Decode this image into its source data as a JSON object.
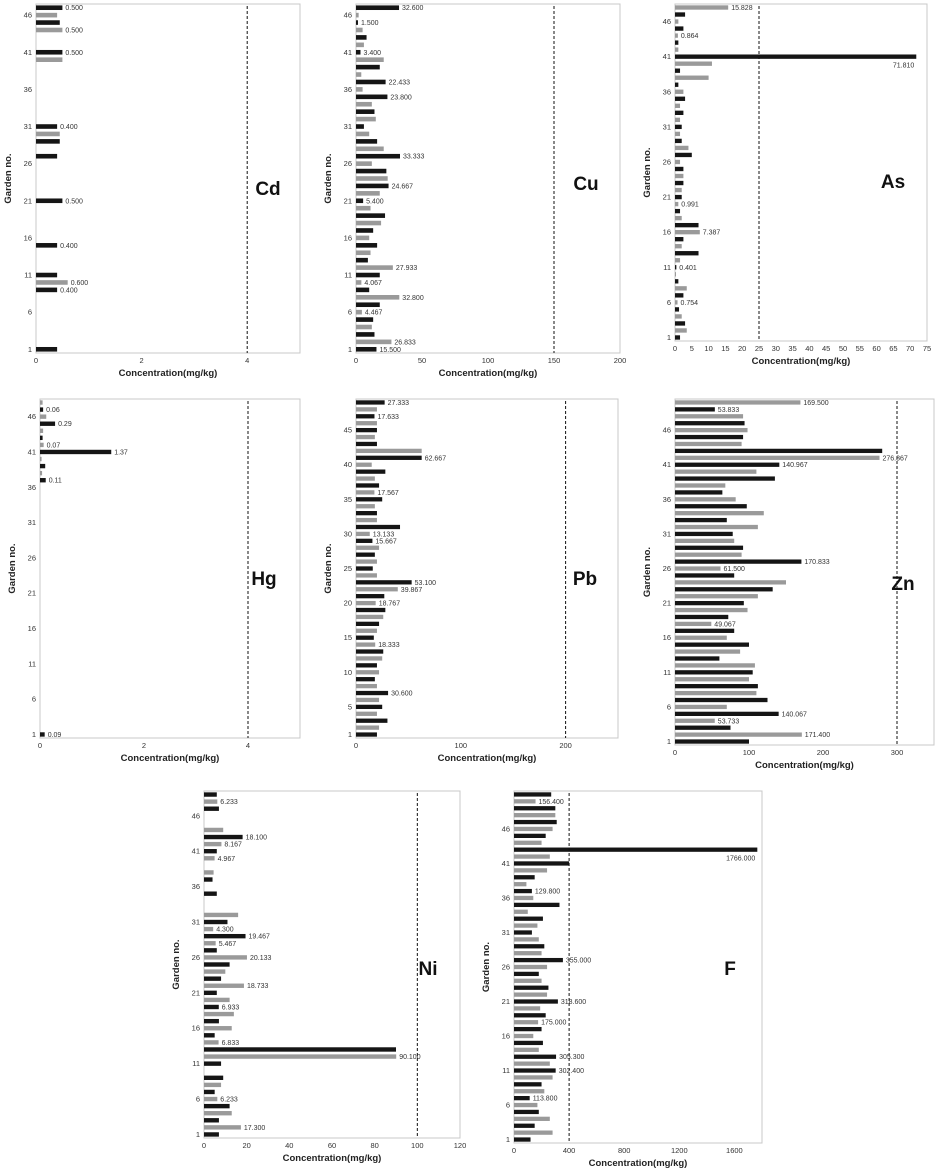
{
  "chart_data": [
    {
      "type": "bar",
      "orientation": "horizontal",
      "element": "Cd",
      "xlabel": "Concentration(mg/kg)",
      "ylabel": "Garden no.",
      "xlim": [
        0,
        5
      ],
      "xticks": [
        0,
        2,
        4
      ],
      "threshold": 4,
      "yticks": [
        "1",
        "6",
        "11",
        "16",
        "21",
        "26",
        "31",
        "36",
        "41",
        "46"
      ],
      "values": [
        0.4,
        0,
        0,
        0,
        0,
        0,
        0,
        0,
        0.4,
        0.6,
        0.4,
        0,
        0,
        0,
        0.4,
        0,
        0,
        0,
        0,
        0,
        0.5,
        0,
        0,
        0,
        0,
        0,
        0.4,
        0,
        0.45,
        0.45,
        0.4,
        0,
        0,
        0,
        0,
        0,
        0,
        0,
        0,
        0.5,
        0.5,
        0,
        0,
        0.5,
        0.45,
        0.4,
        0.5
      ],
      "labels": {
        "1": "",
        "9": "0.400",
        "10": "0.600",
        "11": "",
        "15": "0.400",
        "21": "0.500",
        "31": "0.400",
        "41": "0.500",
        "44": "0.500",
        "47": "0.500"
      }
    },
    {
      "type": "bar",
      "orientation": "horizontal",
      "element": "Cu",
      "xlabel": "Concentration(mg/kg)",
      "ylabel": "Garden no.",
      "xlim": [
        0,
        200
      ],
      "xticks": [
        0,
        50,
        100,
        150,
        200
      ],
      "threshold": 150,
      "yticks": [
        "1",
        "6",
        "11",
        "16",
        "21",
        "26",
        "31",
        "36",
        "41",
        "46"
      ],
      "values": [
        15.5,
        26.833,
        14,
        12,
        13,
        4.467,
        18,
        32.8,
        10,
        4.067,
        18,
        27.933,
        9,
        11,
        16,
        10,
        13,
        19,
        22,
        11,
        5.4,
        18,
        24.667,
        24,
        23,
        12,
        33.333,
        21,
        16,
        10,
        6,
        15,
        14,
        12,
        23.8,
        5,
        22.433,
        4,
        18,
        21,
        3.4,
        6,
        8,
        5,
        1.5,
        2,
        32.6
      ],
      "labels": {
        "1": "15.500",
        "2": "26.833",
        "6": "4.467",
        "8": "32.800",
        "10": "4.067",
        "12": "27.933",
        "21": "5.400",
        "23": "24.667",
        "27": "33.333",
        "35": "23.800",
        "37": "22.433",
        "41": "3.400",
        "45": "1.500",
        "47": "32.600"
      }
    },
    {
      "type": "bar",
      "orientation": "horizontal",
      "element": "As",
      "xlabel": "Concentration(mg/kg)",
      "ylabel": "Garden no.",
      "xlim": [
        0,
        75
      ],
      "xticks": [
        0,
        5,
        10,
        15,
        20,
        25,
        30,
        35,
        40,
        45,
        50,
        55,
        60,
        65,
        70,
        75
      ],
      "threshold": 25,
      "yticks": [
        "1",
        "6",
        "11",
        "16",
        "21",
        "26",
        "31",
        "36",
        "41",
        "46"
      ],
      "values": [
        1.5,
        3.5,
        3,
        2,
        1.2,
        0.754,
        2.5,
        3.5,
        1,
        0.2,
        0.401,
        1.5,
        7,
        2,
        2.5,
        7.387,
        7,
        2,
        1.5,
        0.991,
        2,
        2,
        2.5,
        2.5,
        2.5,
        1.5,
        5,
        4,
        2,
        1.5,
        2,
        1.5,
        2.5,
        1.5,
        3,
        2.5,
        1,
        10,
        1.5,
        11,
        71.81,
        1,
        1,
        0.864,
        2.5,
        1,
        3,
        15.828
      ],
      "labels": {
        "6": "0.754",
        "11": "0.401",
        "16": "7.387",
        "20": "0.991",
        "41": "71.810",
        "44": "0.864",
        "48": "15.828"
      }
    },
    {
      "type": "bar",
      "orientation": "horizontal",
      "element": "Hg",
      "xlabel": "Concentration(mg/kg)",
      "ylabel": "Garden no.",
      "xlim": [
        0,
        5
      ],
      "xticks": [
        0,
        2,
        4
      ],
      "threshold": 4,
      "yticks": [
        "1",
        "6",
        "11",
        "16",
        "21",
        "26",
        "31",
        "36",
        "41",
        "46"
      ],
      "values": [
        0.09,
        0,
        0,
        0,
        0,
        0,
        0,
        0,
        0,
        0,
        0,
        0,
        0,
        0,
        0,
        0,
        0,
        0,
        0,
        0,
        0,
        0,
        0,
        0,
        0,
        0,
        0,
        0,
        0,
        0,
        0,
        0,
        0,
        0,
        0,
        0,
        0.11,
        0.04,
        0.1,
        0.03,
        1.37,
        0.07,
        0.05,
        0.06,
        0.29,
        0.12,
        0.06,
        0.05
      ],
      "labels": {
        "1": "0.09",
        "37": "0.11",
        "41": "1.37",
        "42": "0.07",
        "45": "0.29",
        "47": "0.06"
      }
    },
    {
      "type": "bar",
      "orientation": "horizontal",
      "element": "Pb",
      "xlabel": "Concentration(mg/kg)",
      "ylabel": "Garden no.",
      "xlim": [
        0,
        250
      ],
      "xticks": [
        0,
        100,
        200
      ],
      "threshold": 200,
      "yticks": [
        "1",
        "5",
        "10",
        "15",
        "20",
        "25",
        "30",
        "35",
        "40",
        "45"
      ],
      "values": [
        20,
        22,
        30,
        20,
        25,
        22,
        30.6,
        20,
        18,
        22,
        20,
        25,
        26,
        18.333,
        17,
        20,
        22,
        26,
        28,
        18.767,
        27,
        39.867,
        53.1,
        20,
        16,
        20,
        18,
        22,
        15.667,
        13.133,
        42,
        20,
        20,
        18,
        25,
        17.567,
        22,
        18,
        28,
        15,
        62.667,
        62.667,
        20,
        18,
        20,
        20,
        17.633,
        20,
        27.333
      ],
      "labels": {
        "7": "30.600",
        "14": "18.333",
        "20": "18.767",
        "22": "39.867",
        "23": "53.100",
        "29": "15.667",
        "30": "13.133",
        "36": "17.567",
        "41": "62.667",
        "47": "17.633",
        "49": "27.333"
      }
    },
    {
      "type": "bar",
      "orientation": "horizontal",
      "element": "Zn",
      "xlabel": "Concentration(mg/kg)",
      "ylabel": "Garden no.",
      "xlim": [
        0,
        350
      ],
      "xticks": [
        0,
        100,
        200,
        300
      ],
      "threshold": 300,
      "yticks": [
        "1",
        "6",
        "11",
        "16",
        "21",
        "26",
        "31",
        "36",
        "41",
        "46"
      ],
      "values": [
        100,
        171.4,
        75,
        53.733,
        140.067,
        70,
        125,
        110,
        112,
        100,
        105,
        108,
        60,
        88,
        100,
        70,
        80,
        49.067,
        72,
        98,
        93,
        112,
        132,
        150,
        80,
        61.5,
        170.833,
        90,
        92,
        80,
        78,
        112,
        70,
        120,
        97,
        82,
        64,
        68,
        135,
        110,
        140.967,
        276.367,
        280,
        90,
        92,
        98,
        94,
        92,
        53.833,
        169.5
      ],
      "labels": {
        "2": "171.400",
        "4": "53.733",
        "5": "140.067",
        "18": "49.067",
        "26": "61.500",
        "27": "170.833",
        "41": "140.967",
        "42": "276.367",
        "49": "53.833",
        "50": "169.500"
      }
    },
    {
      "type": "bar",
      "orientation": "horizontal",
      "element": "Ni",
      "xlabel": "Concentration(mg/kg)",
      "ylabel": "Garden no.",
      "xlim": [
        0,
        120
      ],
      "xticks": [
        0,
        20,
        40,
        60,
        80,
        100,
        120
      ],
      "threshold": 100,
      "yticks": [
        "1",
        "6",
        "11",
        "16",
        "21",
        "26",
        "31",
        "36",
        "41",
        "46"
      ],
      "values": [
        7,
        17.3,
        7,
        13,
        12,
        6.233,
        5,
        8,
        9,
        0,
        8,
        90.1,
        90,
        6.833,
        5,
        13,
        7,
        14,
        6.933,
        12,
        6,
        18.733,
        8,
        10,
        12,
        20.133,
        6,
        5.467,
        19.467,
        4.3,
        11,
        16,
        0,
        0,
        6,
        0,
        4,
        4.5,
        0,
        4.967,
        6,
        8.167,
        18.1,
        9,
        0,
        0,
        7,
        6.233,
        6
      ],
      "labels": {
        "2": "17.300",
        "6": "6.233",
        "14": "6.833",
        "19": "6.933",
        "22": "18.733",
        "26": "20.133",
        "28": "5.467",
        "29": "19.467",
        "30": "4.300",
        "40": "4.967",
        "42": "8.167",
        "43": "18.100",
        "12": "90.100",
        "48": "6.233"
      }
    },
    {
      "type": "bar",
      "orientation": "horizontal",
      "element": "F",
      "xlabel": "Concentration(mg/kg)",
      "ylabel": "Garden no.",
      "xlim": [
        0,
        1800
      ],
      "xticks": [
        0,
        400,
        800,
        1200,
        1600
      ],
      "threshold": 400,
      "yticks": [
        "1",
        "6",
        "11",
        "16",
        "21",
        "26",
        "31",
        "36",
        "41",
        "46"
      ],
      "values": [
        120,
        280,
        150,
        260,
        180,
        170,
        113.8,
        220,
        200,
        280,
        302.4,
        260,
        305.3,
        180,
        210,
        140,
        200,
        175,
        230,
        190,
        318.6,
        240,
        250,
        200,
        180,
        240,
        355,
        200,
        220,
        180,
        130,
        170,
        210,
        100,
        330,
        140,
        129.8,
        90,
        150,
        240,
        400,
        260,
        1766,
        200,
        230,
        280,
        310,
        300,
        300,
        156.4,
        270
      ],
      "labels": {
        "7": "113.800",
        "11": "302.400",
        "13": "305.300",
        "18": "175.000",
        "21": "318.600",
        "27": "355.000",
        "37": "129.800",
        "43": "1766.000",
        "50": "156.400"
      }
    }
  ]
}
